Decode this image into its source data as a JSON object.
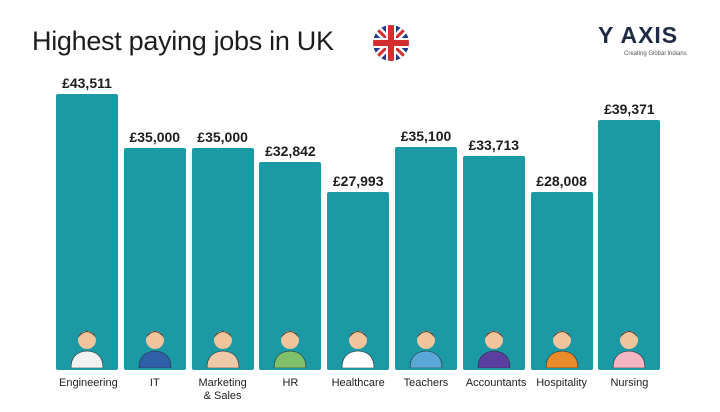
{
  "chart_data": {
    "type": "bar",
    "title": "Highest paying jobs in UK",
    "logo": "Y AXIS",
    "logo_tagline": "Creating Global Indians",
    "categories": [
      "Engineering",
      "IT",
      "Marketing & Sales",
      "HR",
      "Healthcare",
      "Teachers",
      "Accountants",
      "Hospitality",
      "Nursing"
    ],
    "values": [
      43511,
      35000,
      35000,
      32842,
      27993,
      35100,
      33713,
      28008,
      39371
    ],
    "value_labels": [
      "£43,511",
      "£35,000",
      "£35,000",
      "£32,842",
      "£27,993",
      "£35,100",
      "£33,713",
      "£28,008",
      "£39,371"
    ],
    "color": "#1b9aa6"
  }
}
